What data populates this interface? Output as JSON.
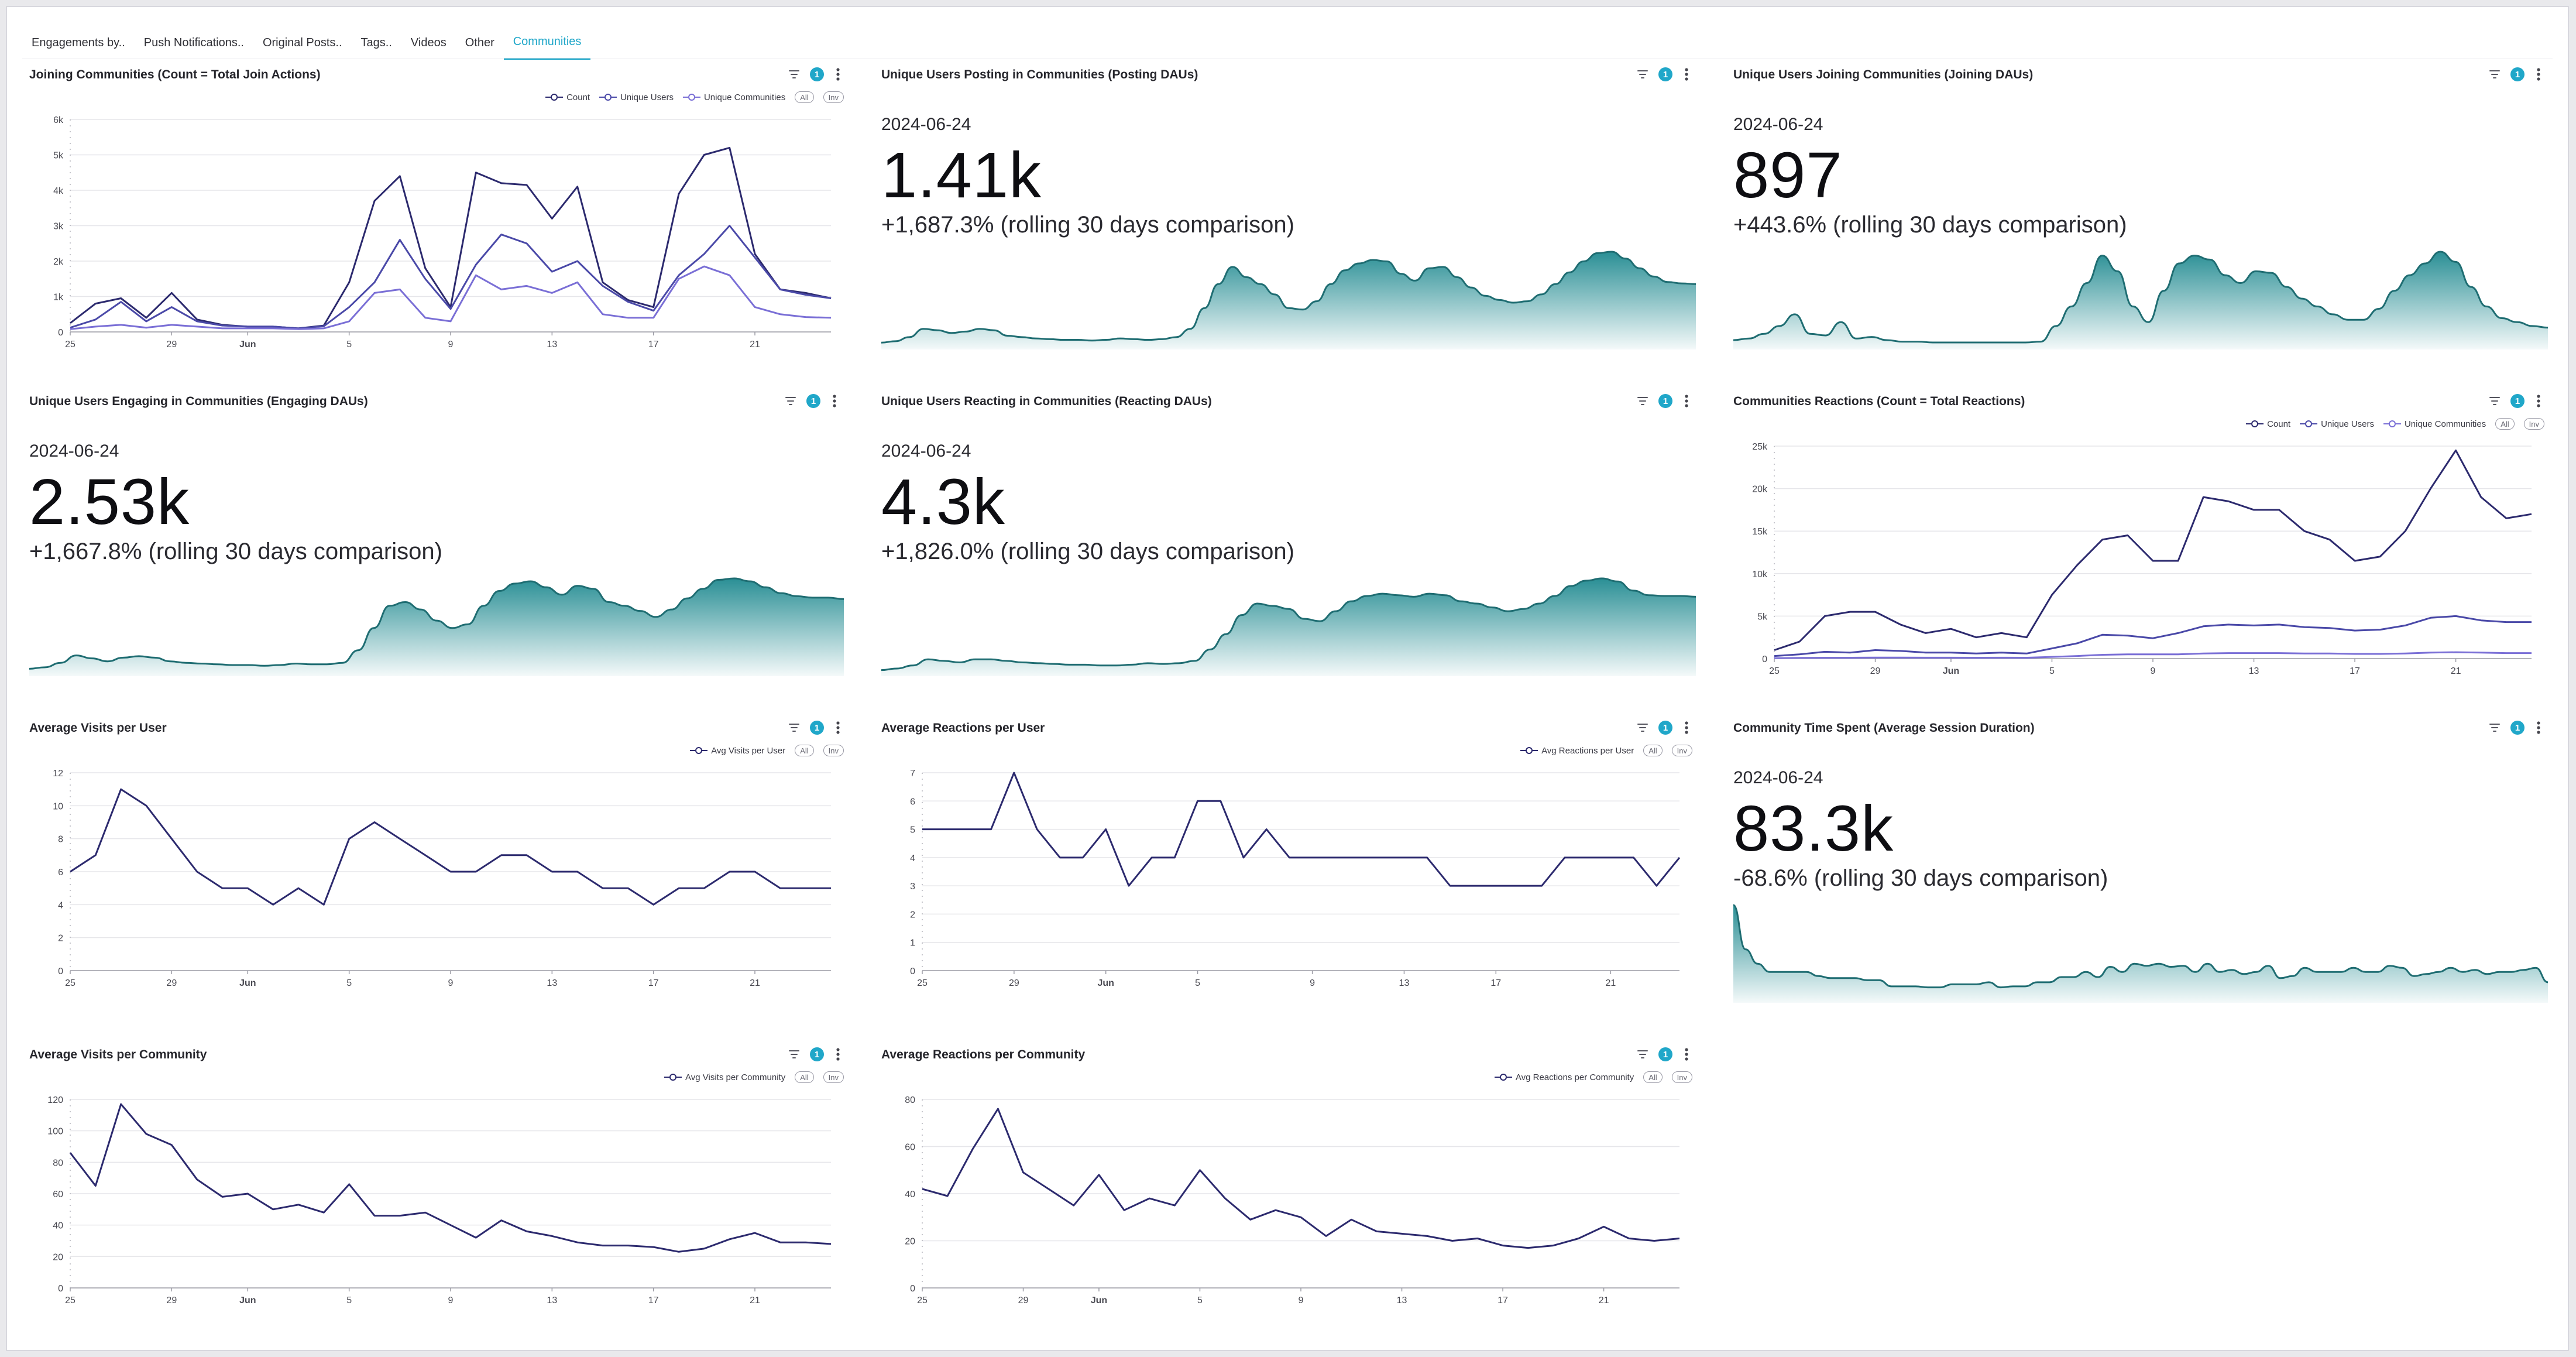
{
  "tabs": [
    {
      "label": "Engagements by.."
    },
    {
      "label": "Push Notifications.."
    },
    {
      "label": "Original Posts.."
    },
    {
      "label": "Tags.."
    },
    {
      "label": "Videos"
    },
    {
      "label": "Other"
    },
    {
      "label": "Communities",
      "active": true
    }
  ],
  "controls": {
    "filter_count": "1",
    "legend_all": "All",
    "legend_inv": "Inv"
  },
  "colors": {
    "accent": "#20a7c9",
    "teal": "#2a8f95",
    "series1": "#2c2a6e",
    "series2": "#4a49a8",
    "series3": "#7a6fd6"
  },
  "panels": {
    "joining_communities": {
      "title": "Joining Communities (Count = Total Join Actions)"
    },
    "posting_daus": {
      "title": "Unique Users Posting in Communities (Posting DAUs)",
      "date": "2024-06-24",
      "value": "1.41k",
      "comparison": "+1,687.3% (rolling 30 days comparison)"
    },
    "joining_daus": {
      "title": "Unique Users Joining Communities (Joining DAUs)",
      "date": "2024-06-24",
      "value": "897",
      "comparison": "+443.6% (rolling 30 days comparison)"
    },
    "engaging_daus": {
      "title": "Unique Users Engaging in Communities (Engaging DAUs)",
      "date": "2024-06-24",
      "value": "2.53k",
      "comparison": "+1,667.8% (rolling 30 days comparison)"
    },
    "reacting_daus": {
      "title": "Unique Users Reacting in Communities (Reacting DAUs)",
      "date": "2024-06-24",
      "value": "4.3k",
      "comparison": "+1,826.0% (rolling 30 days comparison)"
    },
    "communities_reactions": {
      "title": "Communities Reactions (Count = Total Reactions)"
    },
    "avg_visits_user": {
      "title": "Average Visits per User"
    },
    "avg_reactions_user": {
      "title": "Average Reactions per User"
    },
    "time_spent": {
      "title": "Community Time Spent (Average Session Duration)",
      "date": "2024-06-24",
      "value": "83.3k",
      "comparison": "-68.6% (rolling 30 days comparison)"
    },
    "avg_visits_community": {
      "title": "Average Visits per Community"
    },
    "avg_reactions_community": {
      "title": "Average Reactions per Community"
    }
  },
  "chart_data": [
    {
      "id": "joining_communities",
      "type": "line",
      "x_ticks": [
        "25",
        "29",
        "Jun",
        "5",
        "9",
        "13",
        "17",
        "21"
      ],
      "y_ticks": [
        "0",
        "1k",
        "2k",
        "3k",
        "4k",
        "5k",
        "6k"
      ],
      "ylim": [
        0,
        6000
      ],
      "series": [
        {
          "name": "Count",
          "values": [
            250,
            800,
            950,
            400,
            1100,
            350,
            200,
            150,
            150,
            100,
            180,
            1400,
            3700,
            4400,
            1800,
            700,
            4500,
            4200,
            4150,
            3200,
            4100,
            1400,
            900,
            700,
            3900,
            5000,
            5200,
            2200,
            1200,
            1100,
            950
          ]
        },
        {
          "name": "Unique Users",
          "values": [
            120,
            350,
            850,
            300,
            700,
            300,
            180,
            150,
            150,
            100,
            160,
            700,
            1400,
            2600,
            1500,
            650,
            1900,
            2750,
            2500,
            1700,
            2000,
            1300,
            850,
            600,
            1600,
            2200,
            3000,
            2100,
            1200,
            1050,
            950
          ]
        },
        {
          "name": "Unique Communities",
          "values": [
            80,
            150,
            200,
            120,
            200,
            150,
            100,
            100,
            100,
            80,
            100,
            300,
            1100,
            1200,
            400,
            300,
            1600,
            1200,
            1300,
            1100,
            1400,
            500,
            400,
            400,
            1500,
            1850,
            1600,
            700,
            500,
            420,
            400
          ]
        }
      ]
    },
    {
      "id": "communities_reactions",
      "type": "line",
      "x_ticks": [
        "25",
        "29",
        "Jun",
        "5",
        "9",
        "13",
        "17",
        "21"
      ],
      "y_ticks": [
        "0",
        "5k",
        "10k",
        "15k",
        "20k",
        "25k"
      ],
      "ylim": [
        0,
        25000
      ],
      "series": [
        {
          "name": "Count",
          "values": [
            1000,
            2000,
            5000,
            5500,
            5500,
            4000,
            3000,
            3500,
            2500,
            3000,
            2500,
            7500,
            11000,
            14000,
            14500,
            11500,
            11500,
            19000,
            18500,
            17500,
            17500,
            15000,
            14000,
            11500,
            12000,
            15000,
            20000,
            24500,
            19000,
            16500,
            17000
          ]
        },
        {
          "name": "Unique Users",
          "values": [
            300,
            500,
            800,
            700,
            1000,
            900,
            700,
            700,
            600,
            700,
            600,
            1200,
            1800,
            2800,
            2700,
            2400,
            3000,
            3800,
            4000,
            3900,
            4000,
            3700,
            3600,
            3300,
            3400,
            3900,
            4800,
            5000,
            4500,
            4300,
            4300
          ]
        },
        {
          "name": "Unique Communities",
          "values": [
            50,
            80,
            100,
            100,
            120,
            120,
            110,
            110,
            100,
            110,
            100,
            200,
            300,
            450,
            500,
            500,
            500,
            600,
            650,
            650,
            650,
            600,
            600,
            550,
            550,
            600,
            700,
            750,
            700,
            650,
            650
          ]
        }
      ]
    },
    {
      "id": "avg_visits_user",
      "type": "line",
      "x_ticks": [
        "25",
        "29",
        "Jun",
        "5",
        "9",
        "13",
        "17",
        "21"
      ],
      "y_ticks": [
        "0",
        "2",
        "4",
        "6",
        "8",
        "10",
        "12"
      ],
      "ylim": [
        0,
        12
      ],
      "series": [
        {
          "name": "Avg Visits per User",
          "values": [
            6,
            7,
            11,
            10,
            8,
            6,
            5,
            5,
            4,
            5,
            4,
            8,
            9,
            8,
            7,
            6,
            6,
            7,
            7,
            6,
            6,
            5,
            5,
            4,
            5,
            5,
            6,
            6,
            5,
            5,
            5
          ]
        }
      ]
    },
    {
      "id": "avg_reactions_user",
      "type": "line",
      "x_ticks": [
        "25",
        "29",
        "Jun",
        "5",
        "9",
        "13",
        "17",
        "21"
      ],
      "y_ticks": [
        "0",
        "1",
        "2",
        "3",
        "4",
        "5",
        "6",
        "7"
      ],
      "ylim": [
        0,
        7
      ],
      "series": [
        {
          "name": "Avg Reactions per User",
          "values": [
            5,
            5,
            5,
            5,
            7,
            5,
            4,
            4,
            5,
            3,
            4,
            4,
            6,
            6,
            4,
            5,
            4,
            4,
            4,
            4,
            4,
            4,
            4,
            3,
            3,
            3,
            3,
            3,
            4,
            4,
            4,
            4,
            3,
            4
          ]
        }
      ]
    },
    {
      "id": "avg_visits_community",
      "type": "line",
      "x_ticks": [
        "25",
        "29",
        "Jun",
        "5",
        "9",
        "13",
        "17",
        "21"
      ],
      "y_ticks": [
        "0",
        "20",
        "40",
        "60",
        "80",
        "100",
        "120"
      ],
      "ylim": [
        0,
        120
      ],
      "series": [
        {
          "name": "Avg Visits per Community",
          "values": [
            86,
            65,
            117,
            98,
            91,
            69,
            58,
            60,
            50,
            53,
            48,
            66,
            46,
            46,
            48,
            40,
            32,
            43,
            36,
            33,
            29,
            27,
            27,
            26,
            23,
            25,
            31,
            35,
            29,
            29,
            28
          ]
        }
      ]
    },
    {
      "id": "avg_reactions_community",
      "type": "line",
      "x_ticks": [
        "25",
        "29",
        "Jun",
        "5",
        "9",
        "13",
        "17",
        "21"
      ],
      "y_ticks": [
        "0",
        "20",
        "40",
        "60",
        "80"
      ],
      "ylim": [
        0,
        80
      ],
      "series": [
        {
          "name": "Avg Reactions per Community",
          "values": [
            42,
            39,
            59,
            76,
            49,
            42,
            35,
            48,
            33,
            38,
            35,
            50,
            38,
            29,
            33,
            30,
            22,
            29,
            24,
            23,
            22,
            20,
            21,
            18,
            17,
            18,
            21,
            26,
            21,
            20,
            21
          ]
        }
      ]
    },
    {
      "id": "posting_daus",
      "type": "area",
      "values": [
        10,
        12,
        18,
        30,
        28,
        24,
        26,
        30,
        28,
        20,
        18,
        16,
        15,
        14,
        14,
        13,
        14,
        16,
        15,
        14,
        15,
        18,
        30,
        60,
        95,
        120,
        105,
        95,
        80,
        60,
        58,
        70,
        95,
        115,
        125,
        130,
        128,
        110,
        100,
        118,
        120,
        105,
        90,
        78,
        72,
        68,
        70,
        80,
        95,
        112,
        128,
        140,
        142,
        132,
        118,
        106,
        98,
        96,
        95
      ]
    },
    {
      "id": "joining_daus",
      "type": "area",
      "values": [
        12,
        14,
        20,
        30,
        45,
        20,
        18,
        35,
        14,
        16,
        12,
        10,
        10,
        9,
        9,
        9,
        9,
        9,
        9,
        9,
        10,
        30,
        55,
        85,
        120,
        100,
        55,
        35,
        75,
        110,
        120,
        115,
        95,
        85,
        100,
        98,
        80,
        65,
        55,
        45,
        38,
        38,
        52,
        75,
        95,
        110,
        125,
        112,
        80,
        55,
        40,
        35,
        30,
        28
      ]
    },
    {
      "id": "engaging_daus",
      "type": "area",
      "values": [
        10,
        12,
        18,
        28,
        24,
        20,
        25,
        27,
        25,
        20,
        18,
        17,
        16,
        15,
        15,
        14,
        15,
        17,
        16,
        16,
        18,
        35,
        65,
        95,
        100,
        90,
        75,
        65,
        70,
        95,
        115,
        125,
        128,
        120,
        110,
        122,
        118,
        100,
        95,
        88,
        80,
        90,
        105,
        118,
        130,
        132,
        128,
        120,
        112,
        108,
        106,
        106,
        104
      ]
    },
    {
      "id": "reacting_daus",
      "type": "area",
      "values": [
        8,
        10,
        14,
        22,
        20,
        18,
        22,
        22,
        20,
        18,
        17,
        16,
        15,
        15,
        14,
        14,
        15,
        17,
        16,
        17,
        20,
        35,
        55,
        80,
        95,
        92,
        88,
        75,
        72,
        85,
        98,
        105,
        108,
        106,
        104,
        108,
        106,
        98,
        95,
        90,
        85,
        88,
        95,
        105,
        118,
        125,
        128,
        124,
        112,
        106,
        105,
        105,
        104
      ]
    },
    {
      "id": "time_spent",
      "type": "area",
      "values": [
        95,
        52,
        38,
        30,
        30,
        30,
        30,
        26,
        24,
        24,
        24,
        22,
        22,
        16,
        16,
        16,
        15,
        15,
        18,
        18,
        18,
        20,
        15,
        16,
        16,
        20,
        20,
        25,
        25,
        30,
        25,
        35,
        30,
        38,
        36,
        38,
        35,
        36,
        30,
        38,
        30,
        32,
        28,
        30,
        36,
        24,
        26,
        34,
        30,
        30,
        30,
        34,
        30,
        30,
        36,
        34,
        26,
        28,
        30,
        34,
        30,
        32,
        28,
        30,
        30,
        32,
        34,
        20
      ]
    }
  ]
}
